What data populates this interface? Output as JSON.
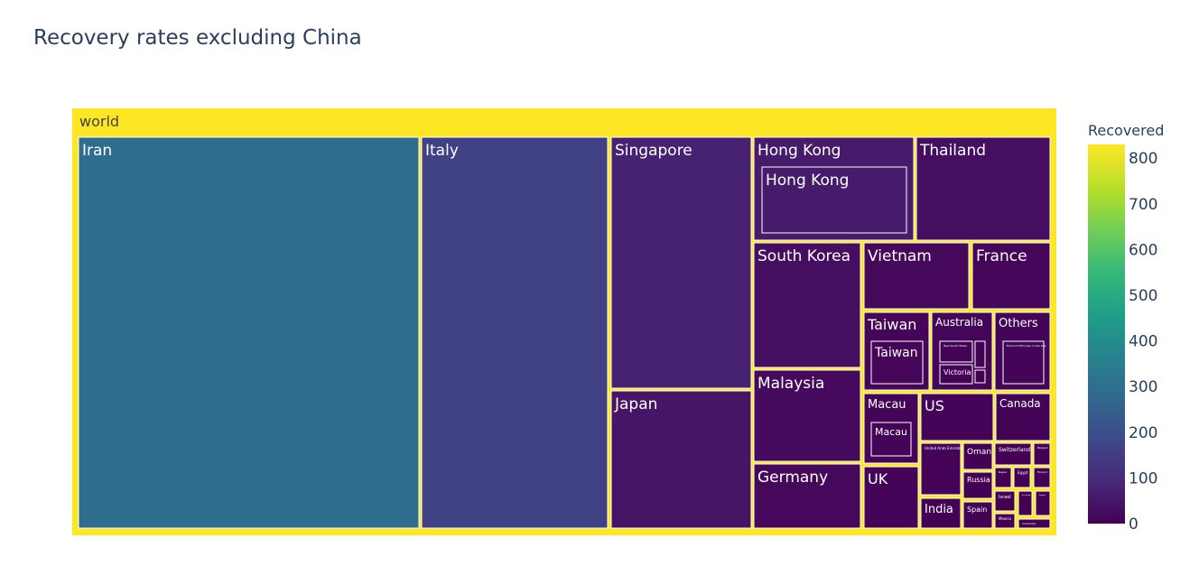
{
  "chart_data": {
    "type": "treemap",
    "title": "Recovery rates excluding China",
    "root_label": "world",
    "colorbar": {
      "title": "Recovered",
      "min": 0,
      "max": 830,
      "ticks": [
        0,
        100,
        200,
        300,
        400,
        500,
        600,
        700,
        800
      ],
      "colorscale": "Viridis"
    },
    "root_color": "#fde725",
    "nodes": [
      {
        "label": "Iran",
        "value": 291
      },
      {
        "label": "Italy",
        "value": 160
      },
      {
        "label": "Singapore",
        "value": 78
      },
      {
        "label": "Japan",
        "value": 46
      },
      {
        "label": "Hong Kong",
        "value": 60,
        "children": [
          {
            "label": "Hong Kong",
            "value": 60
          }
        ]
      },
      {
        "label": "Thailand",
        "value": 31
      },
      {
        "label": "South Korea",
        "value": 30
      },
      {
        "label": "Malaysia",
        "value": 22
      },
      {
        "label": "Germany",
        "value": 16
      },
      {
        "label": "Vietnam",
        "value": 16
      },
      {
        "label": "France",
        "value": 12
      },
      {
        "label": "Taiwan",
        "value": 12,
        "children": [
          {
            "label": "Taiwan",
            "value": 12
          }
        ]
      },
      {
        "label": "Australia",
        "value": 11,
        "children": [
          {
            "label": "New South Wales",
            "value": 4
          },
          {
            "label": "Victoria",
            "value": 4
          },
          {
            "label": "",
            "value": 2
          },
          {
            "label": "",
            "value": 1
          }
        ]
      },
      {
        "label": "Others",
        "value": 10,
        "children": [
          {
            "label": "Diamond Princess cruise ship",
            "value": 10
          }
        ]
      },
      {
        "label": "Macau",
        "value": 8,
        "children": [
          {
            "label": "Macau",
            "value": 8
          }
        ]
      },
      {
        "label": "US",
        "value": 8
      },
      {
        "label": "Canada",
        "value": 6
      },
      {
        "label": "UK",
        "value": 8
      },
      {
        "label": "United Arab Emirates",
        "value": 5
      },
      {
        "label": "India",
        "value": 3
      },
      {
        "label": "Oman",
        "value": 2
      },
      {
        "label": "Russia",
        "value": 2
      },
      {
        "label": "Spain",
        "value": 2
      },
      {
        "label": "Switzerland",
        "value": 2
      },
      {
        "label": "Belgium",
        "value": 1
      },
      {
        "label": "Nepal",
        "value": 1
      },
      {
        "label": "Egypt",
        "value": 1
      },
      {
        "label": "Finland",
        "value": 1
      },
      {
        "label": "Israel",
        "value": 1
      },
      {
        "label": "Mexico",
        "value": 1
      },
      {
        "label": "Sri Lanka",
        "value": 1
      },
      {
        "label": "Kuwait",
        "value": 1
      },
      {
        "label": "Cambodia",
        "value": 1
      },
      {
        "label": "Lebanon",
        "value": 1
      }
    ]
  }
}
